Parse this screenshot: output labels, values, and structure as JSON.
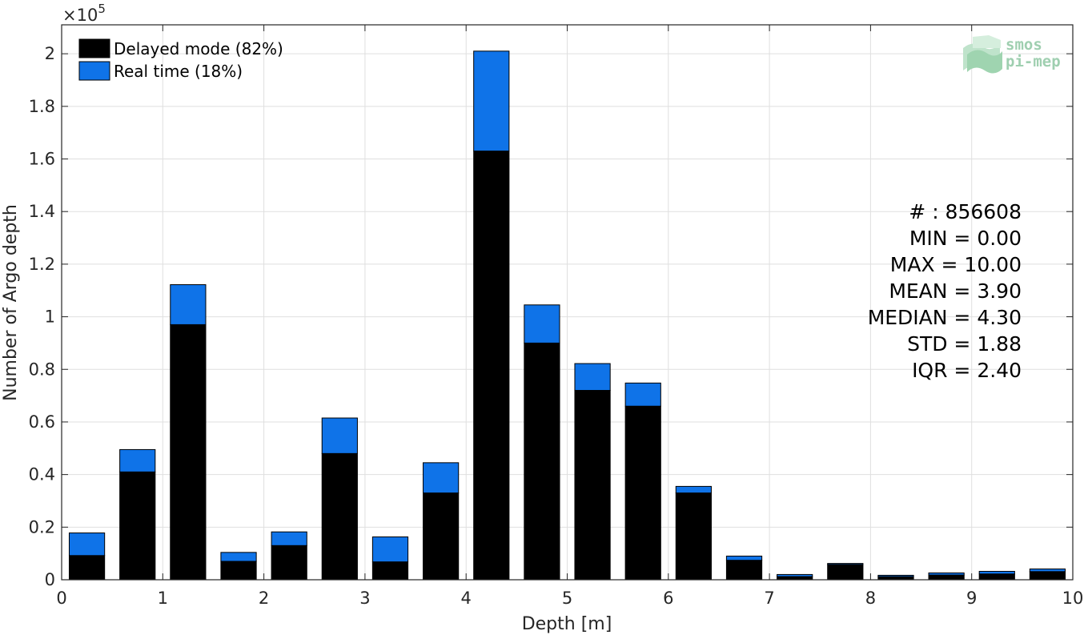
{
  "chart_data": {
    "type": "bar",
    "stacked": true,
    "x": [
      0.25,
      0.75,
      1.25,
      1.75,
      2.25,
      2.75,
      3.25,
      3.75,
      4.25,
      4.75,
      5.25,
      5.75,
      6.25,
      6.75,
      7.25,
      7.75,
      8.25,
      8.75,
      9.25,
      9.75
    ],
    "series": [
      {
        "name": "Delayed mode (82%)",
        "color": "#000000",
        "values": [
          9200,
          41000,
          97000,
          7000,
          13000,
          48000,
          6800,
          33000,
          163000,
          90000,
          72000,
          66000,
          33000,
          7400,
          1200,
          5800,
          1200,
          1800,
          2200,
          3100
        ]
      },
      {
        "name": "Real time (18%)",
        "color": "#0f73e8",
        "values": [
          8600,
          8500,
          15200,
          3400,
          5200,
          13500,
          9500,
          11500,
          38000,
          14500,
          10200,
          8800,
          2500,
          1600,
          800,
          400,
          500,
          800,
          1000,
          1000
        ]
      }
    ],
    "xlabel": "Depth [m]",
    "ylabel": "Number of Argo depth",
    "y_exponent_label": "×10",
    "y_exponent_power": "5",
    "xlim": [
      0,
      10
    ],
    "ylim": [
      0,
      211000
    ],
    "x_ticks": [
      0,
      1,
      2,
      3,
      4,
      5,
      6,
      7,
      8,
      9,
      10
    ],
    "y_ticks": [
      0,
      20000,
      40000,
      60000,
      80000,
      100000,
      120000,
      140000,
      160000,
      180000,
      200000
    ],
    "y_tick_labels": [
      "0",
      "0.2",
      "0.4",
      "0.6",
      "0.8",
      "1",
      "1.2",
      "1.4",
      "1.6",
      "1.8",
      "2"
    ],
    "grid": true,
    "legend_position": "top-left",
    "annotations": [
      "# : 856608",
      "MIN = 0.00",
      "MAX =  10.00",
      "MEAN = 3.90",
      "MEDIAN = 4.30",
      "STD = 1.88",
      "IQR = 2.40"
    ]
  },
  "logo": {
    "line1": "smos",
    "line2": "pi-mep"
  }
}
